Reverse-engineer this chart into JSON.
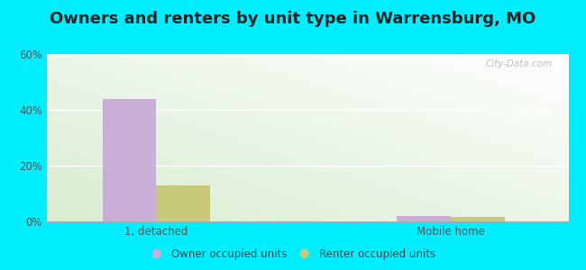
{
  "title": "Owners and renters by unit type in Warrensburg, MO",
  "categories": [
    "1, detached",
    "Mobile home"
  ],
  "owner_values": [
    44.0,
    1.8
  ],
  "renter_values": [
    13.0,
    1.5
  ],
  "owner_color": "#c9aed6",
  "renter_color": "#c8c87a",
  "ylim": [
    0,
    60
  ],
  "yticks": [
    0,
    20,
    40,
    60
  ],
  "yticklabels": [
    "0%",
    "20%",
    "40%",
    "60%"
  ],
  "legend_owner": "Owner occupied units",
  "legend_renter": "Renter occupied units",
  "bg_color": "#00eeff",
  "watermark": "City-Data.com",
  "bar_width": 0.32,
  "group_positions": [
    0.65,
    2.4
  ],
  "title_fontsize": 13,
  "tick_fontsize": 8.5
}
